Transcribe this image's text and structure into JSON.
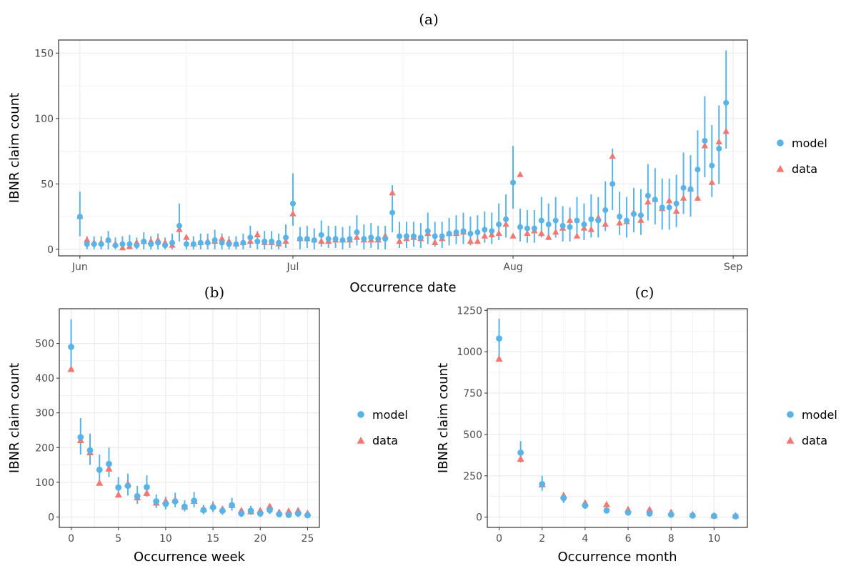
{
  "colors": {
    "model": "#56B4E9",
    "data": "#F8766D",
    "grid": "#ebebeb",
    "frame": "#333333"
  },
  "chart_data": [
    {
      "panel": "(a)",
      "type": "scatter",
      "x_type": "date",
      "xlabel": "Occurrence date",
      "ylabel": "IBNR claim count",
      "xlim": [
        "2020-05-29",
        "2020-09-03"
      ],
      "ylim": [
        -5,
        160
      ],
      "x_ticks": [
        {
          "at": "2020-06-01",
          "label": "Jun"
        },
        {
          "at": "2020-07-01",
          "label": "Jul"
        },
        {
          "at": "2020-08-01",
          "label": "Aug"
        },
        {
          "at": "2020-09-01",
          "label": "Sep"
        }
      ],
      "y_ticks": [
        0,
        50,
        100,
        150
      ],
      "legend": "right",
      "legend_entries": [
        {
          "key": "model",
          "label": "model"
        },
        {
          "key": "data",
          "label": "data"
        }
      ],
      "x": [
        "2020-06-01",
        "2020-06-02",
        "2020-06-03",
        "2020-06-04",
        "2020-06-05",
        "2020-06-06",
        "2020-06-07",
        "2020-06-08",
        "2020-06-09",
        "2020-06-10",
        "2020-06-11",
        "2020-06-12",
        "2020-06-13",
        "2020-06-14",
        "2020-06-15",
        "2020-06-16",
        "2020-06-17",
        "2020-06-18",
        "2020-06-19",
        "2020-06-20",
        "2020-06-21",
        "2020-06-22",
        "2020-06-23",
        "2020-06-24",
        "2020-06-25",
        "2020-06-26",
        "2020-06-27",
        "2020-06-28",
        "2020-06-29",
        "2020-06-30",
        "2020-07-01",
        "2020-07-02",
        "2020-07-03",
        "2020-07-04",
        "2020-07-05",
        "2020-07-06",
        "2020-07-07",
        "2020-07-08",
        "2020-07-09",
        "2020-07-10",
        "2020-07-11",
        "2020-07-12",
        "2020-07-13",
        "2020-07-14",
        "2020-07-15",
        "2020-07-16",
        "2020-07-17",
        "2020-07-18",
        "2020-07-19",
        "2020-07-20",
        "2020-07-21",
        "2020-07-22",
        "2020-07-23",
        "2020-07-24",
        "2020-07-25",
        "2020-07-26",
        "2020-07-27",
        "2020-07-28",
        "2020-07-29",
        "2020-07-30",
        "2020-07-31",
        "2020-08-01",
        "2020-08-02",
        "2020-08-03",
        "2020-08-04",
        "2020-08-05",
        "2020-08-06",
        "2020-08-07",
        "2020-08-08",
        "2020-08-09",
        "2020-08-10",
        "2020-08-11",
        "2020-08-12",
        "2020-08-13",
        "2020-08-14",
        "2020-08-15",
        "2020-08-16",
        "2020-08-17",
        "2020-08-18",
        "2020-08-19",
        "2020-08-20",
        "2020-08-21",
        "2020-08-22",
        "2020-08-23",
        "2020-08-24",
        "2020-08-25",
        "2020-08-26",
        "2020-08-27",
        "2020-08-28",
        "2020-08-29",
        "2020-08-30",
        "2020-08-31"
      ],
      "series": [
        {
          "name": "model",
          "marker": "circle",
          "values": [
            25,
            4,
            4,
            4,
            7,
            3,
            4,
            4,
            3,
            6,
            4,
            5,
            3,
            5,
            18,
            4,
            4,
            5,
            5,
            7,
            5,
            4,
            4,
            5,
            9,
            6,
            6,
            6,
            5,
            9,
            35,
            8,
            8,
            7,
            11,
            8,
            8,
            7,
            8,
            13,
            8,
            9,
            8,
            8,
            28,
            10,
            10,
            10,
            9,
            14,
            10,
            10,
            12,
            13,
            14,
            12,
            13,
            15,
            14,
            19,
            23,
            51,
            17,
            16,
            16,
            22,
            19,
            22,
            18,
            17,
            22,
            19,
            23,
            22,
            30,
            50,
            25,
            22,
            27,
            26,
            41,
            38,
            32,
            32,
            35,
            47,
            46,
            61,
            83,
            64,
            77,
            112
          ],
          "lower": [
            10,
            0,
            0,
            0,
            0,
            0,
            0,
            0,
            0,
            0,
            0,
            0,
            0,
            0,
            6,
            0,
            0,
            0,
            0,
            0,
            0,
            0,
            0,
            0,
            1,
            0,
            0,
            0,
            0,
            1,
            18,
            0,
            1,
            0,
            2,
            1,
            1,
            0,
            1,
            3,
            0,
            1,
            0,
            0,
            13,
            1,
            1,
            2,
            1,
            4,
            2,
            1,
            3,
            4,
            4,
            3,
            4,
            5,
            4,
            7,
            9,
            31,
            6,
            5,
            5,
            9,
            7,
            9,
            6,
            6,
            9,
            7,
            9,
            9,
            14,
            30,
            11,
            9,
            13,
            11,
            22,
            19,
            15,
            15,
            17,
            27,
            25,
            37,
            55,
            40,
            50,
            77
          ],
          "upper": [
            44,
            10,
            10,
            10,
            14,
            9,
            10,
            11,
            9,
            13,
            10,
            12,
            9,
            12,
            35,
            10,
            10,
            12,
            12,
            15,
            12,
            10,
            10,
            12,
            18,
            14,
            14,
            14,
            12,
            19,
            58,
            17,
            18,
            16,
            22,
            18,
            18,
            17,
            18,
            26,
            19,
            20,
            18,
            18,
            49,
            21,
            21,
            21,
            20,
            28,
            21,
            21,
            24,
            26,
            28,
            25,
            26,
            29,
            28,
            35,
            42,
            79,
            31,
            30,
            30,
            40,
            35,
            40,
            33,
            32,
            40,
            35,
            42,
            40,
            52,
            77,
            44,
            40,
            47,
            46,
            65,
            62,
            54,
            54,
            57,
            74,
            72,
            91,
            117,
            95,
            110,
            152
          ]
        },
        {
          "name": "data",
          "marker": "triangle",
          "values": [
            25,
            7,
            5,
            5,
            7,
            4,
            1,
            2,
            5,
            6,
            6,
            7,
            5,
            3,
            15,
            9,
            4,
            5,
            6,
            6,
            8,
            6,
            4,
            5,
            6,
            11,
            5,
            5,
            4,
            6,
            27,
            8,
            8,
            7,
            6,
            6,
            7,
            7,
            7,
            9,
            7,
            7,
            7,
            10,
            43,
            6,
            8,
            9,
            8,
            12,
            5,
            8,
            12,
            12,
            13,
            6,
            6,
            10,
            11,
            12,
            19,
            10,
            57,
            12,
            14,
            12,
            9,
            13,
            16,
            22,
            10,
            16,
            15,
            24,
            19,
            71,
            20,
            21,
            28,
            22,
            36,
            38,
            31,
            37,
            29,
            39,
            46,
            39,
            79,
            51,
            82,
            90
          ]
        }
      ]
    },
    {
      "panel": "(b)",
      "type": "scatter",
      "xlabel": "Occurrence week",
      "ylabel": "IBNR claim count",
      "xlim": [
        -1.25,
        26.25
      ],
      "ylim": [
        -30,
        600
      ],
      "x_ticks": [
        0,
        5,
        10,
        15,
        20,
        25
      ],
      "y_ticks": [
        0,
        100,
        200,
        300,
        400,
        500
      ],
      "legend": "right",
      "legend_entries": [
        {
          "key": "model",
          "label": "model"
        },
        {
          "key": "data",
          "label": "data"
        }
      ],
      "x": [
        0,
        1,
        2,
        3,
        4,
        5,
        6,
        7,
        8,
        9,
        10,
        11,
        12,
        13,
        14,
        15,
        16,
        17,
        18,
        19,
        20,
        21,
        22,
        23,
        24,
        25
      ],
      "series": [
        {
          "name": "model",
          "marker": "circle",
          "values": [
            490,
            230,
            192,
            136,
            153,
            85,
            90,
            60,
            86,
            45,
            38,
            45,
            30,
            47,
            20,
            28,
            18,
            34,
            10,
            18,
            10,
            20,
            8,
            6,
            10,
            5
          ],
          "lower": [
            420,
            180,
            150,
            100,
            115,
            60,
            62,
            38,
            58,
            26,
            22,
            28,
            16,
            28,
            8,
            14,
            6,
            18,
            0,
            6,
            0,
            8,
            0,
            0,
            0,
            0
          ],
          "upper": [
            570,
            285,
            240,
            180,
            200,
            115,
            125,
            90,
            120,
            65,
            58,
            70,
            48,
            72,
            35,
            45,
            32,
            55,
            22,
            32,
            24,
            35,
            20,
            15,
            22,
            12
          ]
        },
        {
          "name": "data",
          "marker": "triangle",
          "values": [
            425,
            220,
            185,
            97,
            138,
            63,
            95,
            55,
            68,
            40,
            45,
            48,
            28,
            45,
            22,
            32,
            22,
            33,
            18,
            15,
            18,
            30,
            13,
            16,
            18,
            10
          ]
        }
      ]
    },
    {
      "panel": "(c)",
      "type": "scatter",
      "xlabel": "Occurrence month",
      "ylabel": "IBNR claim count",
      "xlim": [
        -0.55,
        11.55
      ],
      "ylim": [
        -62,
        1260
      ],
      "x_ticks": [
        0,
        2,
        4,
        6,
        8,
        10
      ],
      "y_ticks": [
        0,
        250,
        500,
        750,
        1000,
        1250
      ],
      "legend": "right",
      "legend_entries": [
        {
          "key": "model",
          "label": "model"
        },
        {
          "key": "data",
          "label": "data"
        }
      ],
      "x": [
        0,
        1,
        2,
        3,
        4,
        5,
        6,
        7,
        8,
        9,
        10,
        11
      ],
      "series": [
        {
          "name": "model",
          "marker": "circle",
          "values": [
            1080,
            390,
            200,
            115,
            70,
            40,
            28,
            22,
            15,
            10,
            7,
            5
          ],
          "lower": [
            960,
            330,
            160,
            85,
            50,
            25,
            16,
            12,
            6,
            2,
            0,
            0
          ],
          "upper": [
            1200,
            460,
            250,
            150,
            95,
            60,
            42,
            35,
            26,
            20,
            15,
            12
          ]
        },
        {
          "name": "data",
          "marker": "triangle",
          "values": [
            955,
            350,
            195,
            130,
            85,
            75,
            45,
            45,
            28,
            15,
            8,
            8
          ]
        }
      ]
    }
  ]
}
